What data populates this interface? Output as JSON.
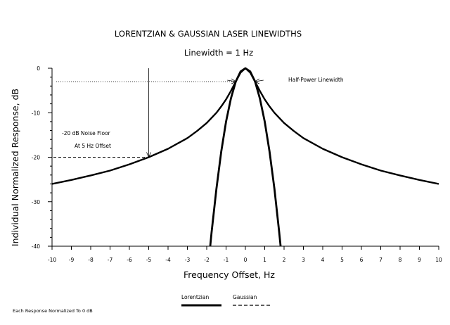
{
  "chart_data": {
    "type": "line",
    "title": "LORENTZIAN & GAUSSIAN LASER LINEWIDTHS",
    "subtitle": "Linewidth = 1 Hz",
    "xlabel": "Frequency Offset, Hz",
    "ylabel": "Individual Normalized Response, dB",
    "xlim": [
      -10,
      10
    ],
    "ylim": [
      -40,
      0
    ],
    "xticks": [
      -10,
      -9,
      -8,
      -7,
      -6,
      -5,
      -4,
      -3,
      -2,
      -1,
      0,
      1,
      2,
      3,
      4,
      5,
      6,
      7,
      8,
      9,
      10
    ],
    "yticks": [
      0,
      -10,
      -20,
      -30,
      -40
    ],
    "series": [
      {
        "name": "Lorentzian",
        "style": "solid",
        "x": [
          -10,
          -9,
          -8,
          -7,
          -6,
          -5,
          -4,
          -3,
          -2.5,
          -2,
          -1.5,
          -1.25,
          -1,
          -0.75,
          -0.5,
          -0.25,
          0,
          0.25,
          0.5,
          0.75,
          1,
          1.25,
          1.5,
          2,
          2.5,
          3,
          4,
          5,
          6,
          7,
          8,
          9,
          10
        ],
        "y": [
          -26.0,
          -25.1,
          -24.1,
          -23.0,
          -21.6,
          -20.0,
          -18.1,
          -15.7,
          -14.1,
          -12.3,
          -10.0,
          -8.6,
          -7.0,
          -5.1,
          -3.0,
          -1.0,
          0,
          -1.0,
          -3.0,
          -5.1,
          -7.0,
          -8.6,
          -10.0,
          -12.3,
          -14.1,
          -15.7,
          -18.1,
          -20.0,
          -21.6,
          -23.0,
          -24.1,
          -25.1,
          -26.0
        ]
      },
      {
        "name": "Gaussian",
        "style": "dashed",
        "x": [
          -1.9,
          -1.75,
          -1.5,
          -1.25,
          -1.0,
          -0.75,
          -0.5,
          -0.25,
          0,
          0.25,
          0.5,
          0.75,
          1.0,
          1.25,
          1.5,
          1.75,
          1.9
        ],
        "y": [
          -43.5,
          -36.9,
          -27.1,
          -18.8,
          -12.0,
          -6.8,
          -3.0,
          -0.75,
          0,
          -0.75,
          -3.0,
          -6.8,
          -12.0,
          -18.8,
          -27.1,
          -36.9,
          -43.5
        ]
      }
    ],
    "annotations": [
      {
        "text": "Half-Power Linewidth",
        "x": 0.5,
        "y": -3
      },
      {
        "text": "-20 dB Noise Floor",
        "x": -5,
        "y": -20
      },
      {
        "text": "At 5 Hz Offset",
        "x": -5,
        "y": -20
      }
    ],
    "legend": {
      "placement": "bottom-center",
      "items": [
        {
          "label": "Lorentzian",
          "style": "solid"
        },
        {
          "label": "Gaussian",
          "style": "dashed"
        }
      ]
    },
    "footnote": "Each Response Normalized To 0 dB",
    "grid": false
  }
}
